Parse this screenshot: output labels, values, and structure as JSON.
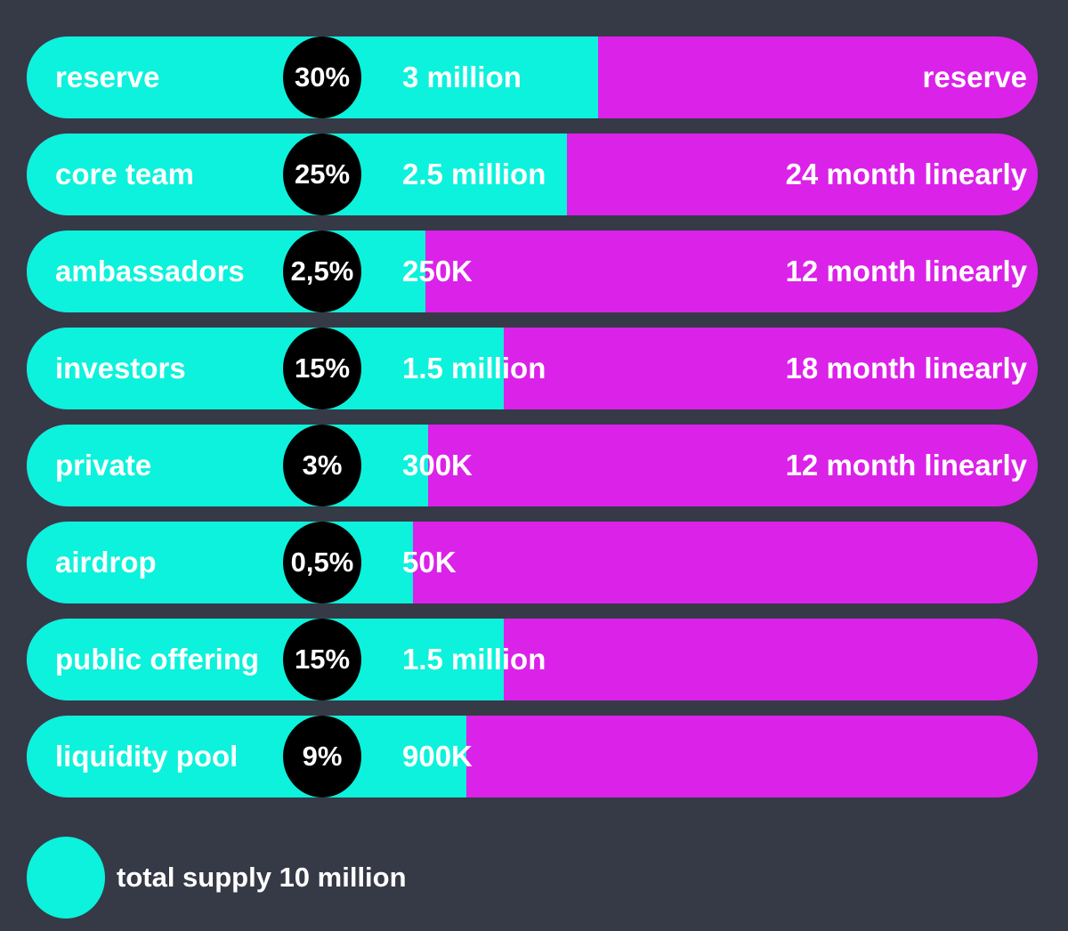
{
  "colors": {
    "background": "#363a47",
    "allocated": "#0cf2dc",
    "remainder": "#db22e8",
    "badge": "#000000",
    "text": "#ffffff"
  },
  "chart_data": {
    "type": "bar",
    "orientation": "horizontal",
    "title": "",
    "categories": [
      "reserve",
      "core team",
      "ambassadors",
      "investors",
      "private",
      "airdrop",
      "public offering",
      "liquidity pool"
    ],
    "percent_labels": [
      "30%",
      "25%",
      "2,5%",
      "15%",
      "3%",
      "0,5%",
      "15%",
      "9%"
    ],
    "values": [
      3000000,
      2500000,
      250000,
      1500000,
      300000,
      50000,
      1500000,
      900000
    ],
    "amount_labels": [
      "3 million",
      "2.5 million",
      "250K",
      "1.5 million",
      "300K",
      "50K",
      "1.5 million",
      "900K"
    ],
    "vesting": [
      "reserve",
      "24 month linearly",
      "12 month linearly",
      "18 month linearly",
      "12 month linearly",
      "",
      "",
      ""
    ],
    "xlim": [
      0,
      10000000
    ],
    "legend": "bottom-left",
    "legend_label": "total supply 10 million"
  }
}
